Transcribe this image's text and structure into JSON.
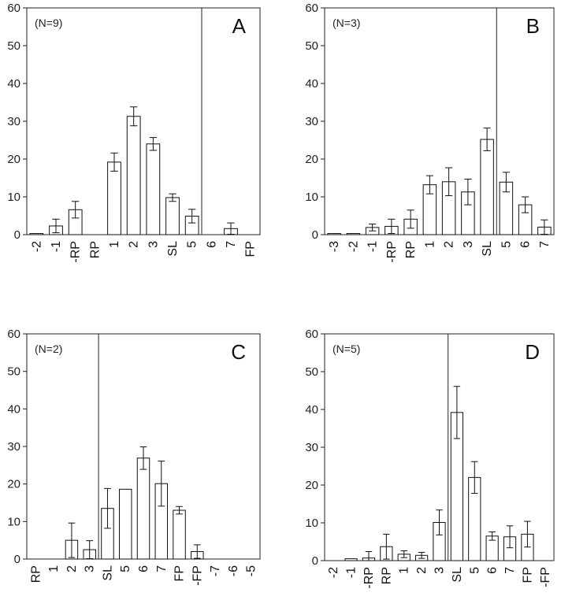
{
  "chart_data": [
    {
      "type": "bar",
      "panel": "A",
      "annotation": "(N=9)",
      "ylim": [
        0,
        60
      ],
      "yticks": [
        0,
        10,
        20,
        30,
        40,
        50,
        60
      ],
      "categories": [
        "-2",
        "-1",
        "-RP",
        "RP",
        "1",
        "2",
        "3",
        "SL",
        "5",
        "6",
        "7",
        "FP"
      ],
      "values": [
        0.3,
        2.3,
        6.6,
        null,
        19.2,
        31.3,
        24.0,
        9.8,
        4.9,
        null,
        1.6,
        null
      ],
      "errors": [
        0,
        1.8,
        2.2,
        null,
        2.4,
        2.5,
        1.7,
        1.0,
        1.8,
        null,
        1.5,
        null
      ],
      "divider_after": "5"
    },
    {
      "type": "bar",
      "panel": "B",
      "annotation": "(N=3)",
      "ylim": [
        0,
        60
      ],
      "yticks": [
        0,
        10,
        20,
        30,
        40,
        50,
        60
      ],
      "categories": [
        "-3",
        "-2",
        "-1",
        "-RP",
        "RP",
        "1",
        "2",
        "3",
        "SL",
        "5",
        "6",
        "7"
      ],
      "values": [
        0.3,
        0.3,
        1.9,
        2.2,
        4.1,
        13.2,
        14.0,
        11.3,
        25.2,
        13.9,
        7.9,
        2.0
      ],
      "errors": [
        0,
        0,
        0.9,
        1.9,
        2.4,
        2.4,
        3.7,
        3.4,
        3.0,
        2.6,
        2.1,
        1.9
      ],
      "divider_after": "SL"
    },
    {
      "type": "bar",
      "panel": "C",
      "annotation": "(N=2)",
      "ylim": [
        0,
        60
      ],
      "yticks": [
        0,
        10,
        20,
        30,
        40,
        50,
        60
      ],
      "categories": [
        "RP",
        "1",
        "2",
        "3",
        "SL",
        "5",
        "6",
        "7",
        "FP",
        "-FP",
        "-7",
        "-6",
        "-5"
      ],
      "values": [
        null,
        null,
        5.0,
        2.5,
        13.5,
        18.6,
        26.9,
        20.1,
        13.0,
        2.0,
        null,
        null,
        null
      ],
      "errors": [
        null,
        null,
        4.6,
        2.4,
        5.3,
        0,
        3.0,
        6.0,
        1.0,
        1.8,
        null,
        null,
        null
      ],
      "divider_after": "3"
    },
    {
      "type": "bar",
      "panel": "D",
      "annotation": "(N=5)",
      "ylim": [
        0,
        60
      ],
      "yticks": [
        0,
        10,
        20,
        30,
        40,
        50,
        60
      ],
      "categories": [
        "-2",
        "-1",
        "-RP",
        "RP",
        "1",
        "2",
        "3",
        "SL",
        "5",
        "6",
        "7",
        "FP",
        "-FP"
      ],
      "values": [
        null,
        0.5,
        0.7,
        3.7,
        1.7,
        1.4,
        10.1,
        39.2,
        22.0,
        6.5,
        6.3,
        7.0,
        null
      ],
      "errors": [
        null,
        0,
        1.7,
        3.3,
        0.9,
        0.8,
        3.3,
        6.9,
        4.2,
        1.1,
        2.9,
        3.4,
        null
      ],
      "divider_after": "3"
    }
  ]
}
